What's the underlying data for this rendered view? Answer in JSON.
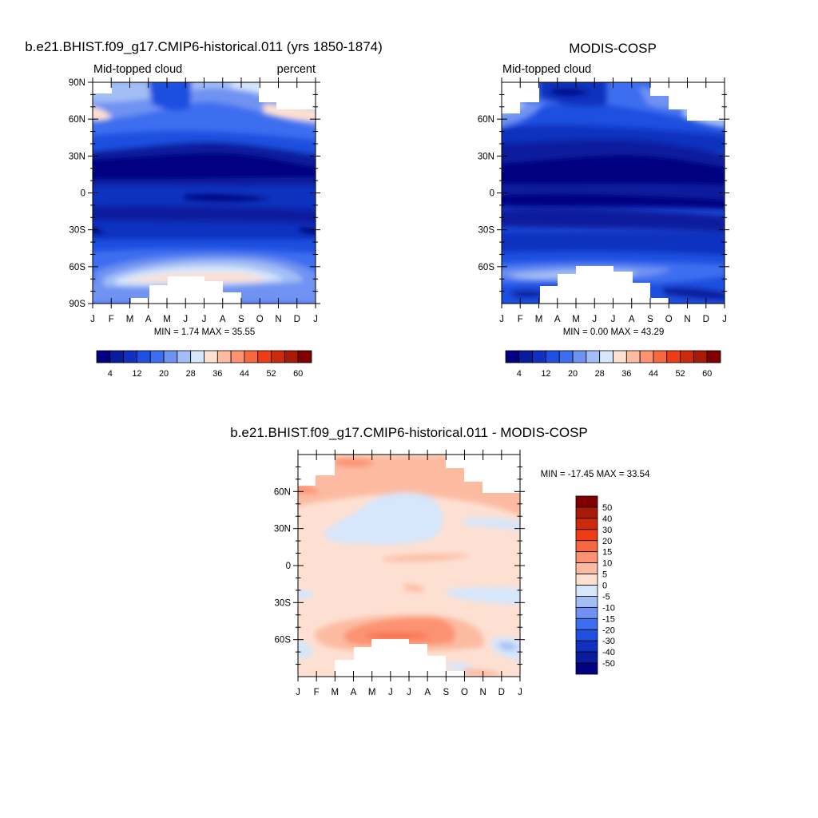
{
  "chart_data": [
    {
      "type": "heatmap",
      "title": "b.e21.BHIST.f09_g17.CMIP6-historical.011 (yrs 1850-1874)",
      "left_label": "Mid-topped cloud",
      "right_label": "percent",
      "x_tick_labels": [
        "J",
        "F",
        "M",
        "A",
        "M",
        "J",
        "J",
        "A",
        "S",
        "O",
        "N",
        "D",
        "J"
      ],
      "y_tick_labels": [
        "90N",
        "60N",
        "30N",
        "0",
        "30S",
        "60S",
        "90S"
      ],
      "y_ticks": [
        90,
        60,
        30,
        0,
        -30,
        -60,
        -90
      ],
      "ylim": [
        -90,
        90
      ],
      "min_max_text": "MIN =   1.74 MAX =  35.55",
      "min": 1.74,
      "max": 35.55,
      "colorbar": {
        "orientation": "horizontal",
        "levels": [
          4,
          8,
          12,
          16,
          20,
          24,
          28,
          32,
          36,
          40,
          44,
          48,
          52,
          56,
          60
        ],
        "labels": [
          "4",
          "12",
          "20",
          "28",
          "36",
          "44",
          "52",
          "60"
        ],
        "colors": [
          "#000080",
          "#0a1c9e",
          "#1030bf",
          "#1e4fe0",
          "#3d6ef0",
          "#6f92f2",
          "#a3bef5",
          "#d6e6fb",
          "#fee0d2",
          "#fcbba1",
          "#fc9272",
          "#f6683f",
          "#f03c14",
          "#cb2a0c",
          "#a91908",
          "#800000"
        ]
      }
    },
    {
      "type": "heatmap",
      "title": "MODIS-COSP",
      "left_label": "Mid-topped cloud",
      "x_tick_labels": [
        "J",
        "F",
        "M",
        "A",
        "M",
        "J",
        "J",
        "A",
        "S",
        "O",
        "N",
        "D",
        "J"
      ],
      "y_tick_labels": [
        "60N",
        "30N",
        "0",
        "30S",
        "60S"
      ],
      "y_ticks": [
        60,
        30,
        0,
        -30,
        -60
      ],
      "ylim": [
        -90,
        90
      ],
      "min_max_text": "MIN =   0.00 MAX =  43.29",
      "min": 0.0,
      "max": 43.29,
      "colorbar": {
        "orientation": "horizontal",
        "levels": [
          4,
          8,
          12,
          16,
          20,
          24,
          28,
          32,
          36,
          40,
          44,
          48,
          52,
          56,
          60
        ],
        "labels": [
          "4",
          "12",
          "20",
          "28",
          "36",
          "44",
          "52",
          "60"
        ],
        "colors": [
          "#000080",
          "#0a1c9e",
          "#1030bf",
          "#1e4fe0",
          "#3d6ef0",
          "#6f92f2",
          "#a3bef5",
          "#d6e6fb",
          "#fee0d2",
          "#fcbba1",
          "#fc9272",
          "#f6683f",
          "#f03c14",
          "#cb2a0c",
          "#a91908",
          "#800000"
        ]
      }
    },
    {
      "type": "heatmap",
      "title": "b.e21.BHIST.f09_g17.CMIP6-historical.011 - MODIS-COSP",
      "x_tick_labels": [
        "J",
        "F",
        "M",
        "A",
        "M",
        "J",
        "J",
        "A",
        "S",
        "O",
        "N",
        "D",
        "J"
      ],
      "y_tick_labels": [
        "60N",
        "30N",
        "0",
        "30S",
        "60S"
      ],
      "y_ticks": [
        60,
        30,
        0,
        -30,
        -60
      ],
      "ylim": [
        -90,
        90
      ],
      "min_max_text": "MIN = -17.45 MAX =  33.54",
      "min": -17.45,
      "max": 33.54,
      "colorbar": {
        "orientation": "vertical",
        "levels": [
          -50,
          -40,
          -30,
          -20,
          -15,
          -10,
          -5,
          0,
          5,
          10,
          15,
          20,
          30,
          40,
          50
        ],
        "labels": [
          "50",
          "40",
          "30",
          "20",
          "15",
          "10",
          "5",
          "0",
          "-5",
          "-10",
          "-15",
          "-20",
          "-30",
          "-40",
          "-50"
        ],
        "colors": [
          "#000080",
          "#0a1c9e",
          "#1030bf",
          "#1e4fe0",
          "#3d6ef0",
          "#6f92f2",
          "#a3bef5",
          "#d6e6fb",
          "#fee0d2",
          "#fcbba1",
          "#fc9272",
          "#f6683f",
          "#f03c14",
          "#cb2a0c",
          "#a91908",
          "#800000"
        ]
      }
    }
  ]
}
